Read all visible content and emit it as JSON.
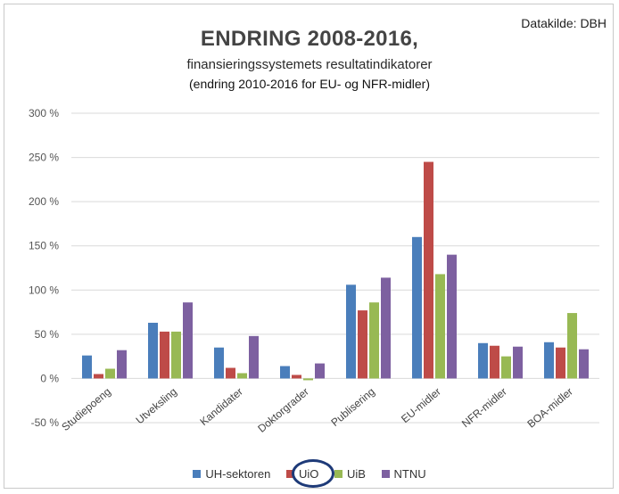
{
  "source_label": "Datakilde: DBH",
  "title": "ENDRING 2008-2016,",
  "subtitle": "finansieringssystemets resultatindikatorer",
  "subtitle2": "(endring 2010-2016 for EU- og NFR-midler)",
  "colors": {
    "UH-sektoren": "#4a7ebb",
    "UiO": "#be4b48",
    "UiB": "#98b954",
    "NTNU": "#7d60a0",
    "grid": "#d9d9d9",
    "highlight_circle": "#1e3a78"
  },
  "chart_data": {
    "type": "bar",
    "categories": [
      "Studiepoeng",
      "Utveksling",
      "Kandidater",
      "Doktorgrader",
      "Publisering",
      "EU-midler",
      "NFR-midler",
      "BOA-midler"
    ],
    "series": [
      {
        "name": "UH-sektoren",
        "values": [
          26,
          63,
          35,
          14,
          106,
          160,
          40,
          41
        ]
      },
      {
        "name": "UiO",
        "values": [
          5,
          53,
          12,
          4,
          77,
          245,
          37,
          35
        ]
      },
      {
        "name": "UiB",
        "values": [
          11,
          53,
          6,
          -2,
          86,
          118,
          25,
          74
        ]
      },
      {
        "name": "NTNU",
        "values": [
          32,
          86,
          48,
          17,
          114,
          140,
          36,
          33
        ]
      }
    ],
    "yticks": [
      "300 %",
      "250 %",
      "200 %",
      "150 %",
      "100 %",
      "50 %",
      "0 %",
      "-50 %"
    ],
    "ylim": [
      -50,
      300
    ],
    "grid": true,
    "legend_position": "bottom",
    "highlighted_legend_entry": "UiO"
  }
}
